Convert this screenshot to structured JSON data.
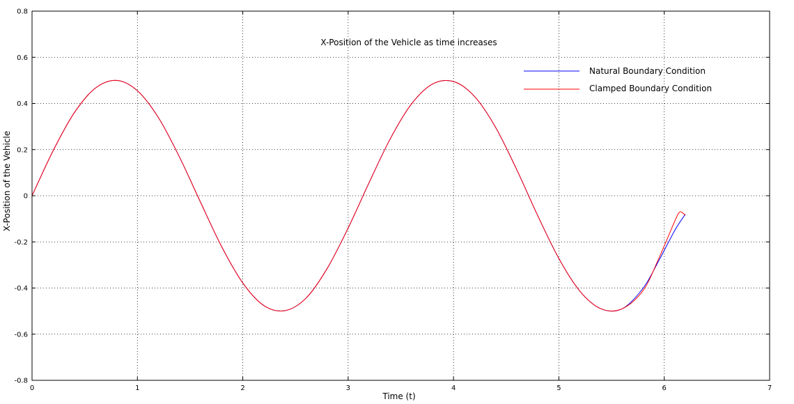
{
  "chart_data": {
    "type": "line",
    "title": "X-Position of the Vehicle as time increases",
    "xlabel": "Time (t)",
    "ylabel": "X-Position of the Vehicle",
    "xlim": [
      0,
      7
    ],
    "ylim": [
      -0.8,
      0.8
    ],
    "x_ticks": [
      0,
      1,
      2,
      3,
      4,
      5,
      6,
      7
    ],
    "y_ticks": [
      -0.8,
      -0.6,
      -0.4,
      -0.2,
      0,
      0.2,
      0.4,
      0.6,
      0.8
    ],
    "x_tick_labels": [
      "0",
      "1",
      "2",
      "3",
      "4",
      "5",
      "6",
      "7"
    ],
    "y_tick_labels": [
      "-0.8",
      "-0.6",
      "-0.4",
      "-0.2",
      "0",
      "0.2",
      "0.4",
      "0.6",
      "0.8"
    ],
    "grid": true,
    "legend_position": "top-right",
    "series": [
      {
        "name": "Natural Boundary Condition",
        "color": "#0000ff",
        "x": [
          0,
          0.2,
          0.4,
          0.6,
          0.8,
          1.0,
          1.2,
          1.4,
          1.6,
          1.8,
          2.0,
          2.2,
          2.4,
          2.6,
          2.8,
          3.0,
          3.2,
          3.4,
          3.6,
          3.8,
          4.0,
          4.2,
          4.4,
          4.6,
          4.8,
          5.0,
          5.2,
          5.4,
          5.6,
          5.8,
          5.95,
          6.1,
          6.2
        ],
        "y": [
          0,
          0.195,
          0.359,
          0.466,
          0.5,
          0.455,
          0.338,
          0.167,
          -0.029,
          -0.221,
          -0.378,
          -0.476,
          -0.498,
          -0.444,
          -0.316,
          -0.14,
          0.058,
          0.247,
          0.397,
          0.484,
          0.495,
          0.43,
          0.296,
          0.113,
          -0.087,
          -0.272,
          -0.414,
          -0.49,
          -0.49,
          -0.4,
          -0.28,
          -0.15,
          -0.08
        ]
      },
      {
        "name": "Clamped Boundary Condition",
        "color": "#ff0000",
        "x": [
          0,
          0.2,
          0.4,
          0.6,
          0.8,
          1.0,
          1.2,
          1.4,
          1.6,
          1.8,
          2.0,
          2.2,
          2.4,
          2.6,
          2.8,
          3.0,
          3.2,
          3.4,
          3.6,
          3.8,
          4.0,
          4.2,
          4.4,
          4.6,
          4.8,
          5.0,
          5.2,
          5.4,
          5.6,
          5.8,
          5.95,
          6.1,
          6.15,
          6.2
        ],
        "y": [
          0,
          0.195,
          0.359,
          0.466,
          0.5,
          0.455,
          0.338,
          0.167,
          -0.029,
          -0.221,
          -0.378,
          -0.476,
          -0.498,
          -0.444,
          -0.316,
          -0.14,
          0.058,
          0.247,
          0.397,
          0.484,
          0.495,
          0.43,
          0.296,
          0.113,
          -0.087,
          -0.272,
          -0.414,
          -0.49,
          -0.49,
          -0.41,
          -0.27,
          -0.11,
          -0.07,
          -0.085
        ]
      }
    ]
  }
}
